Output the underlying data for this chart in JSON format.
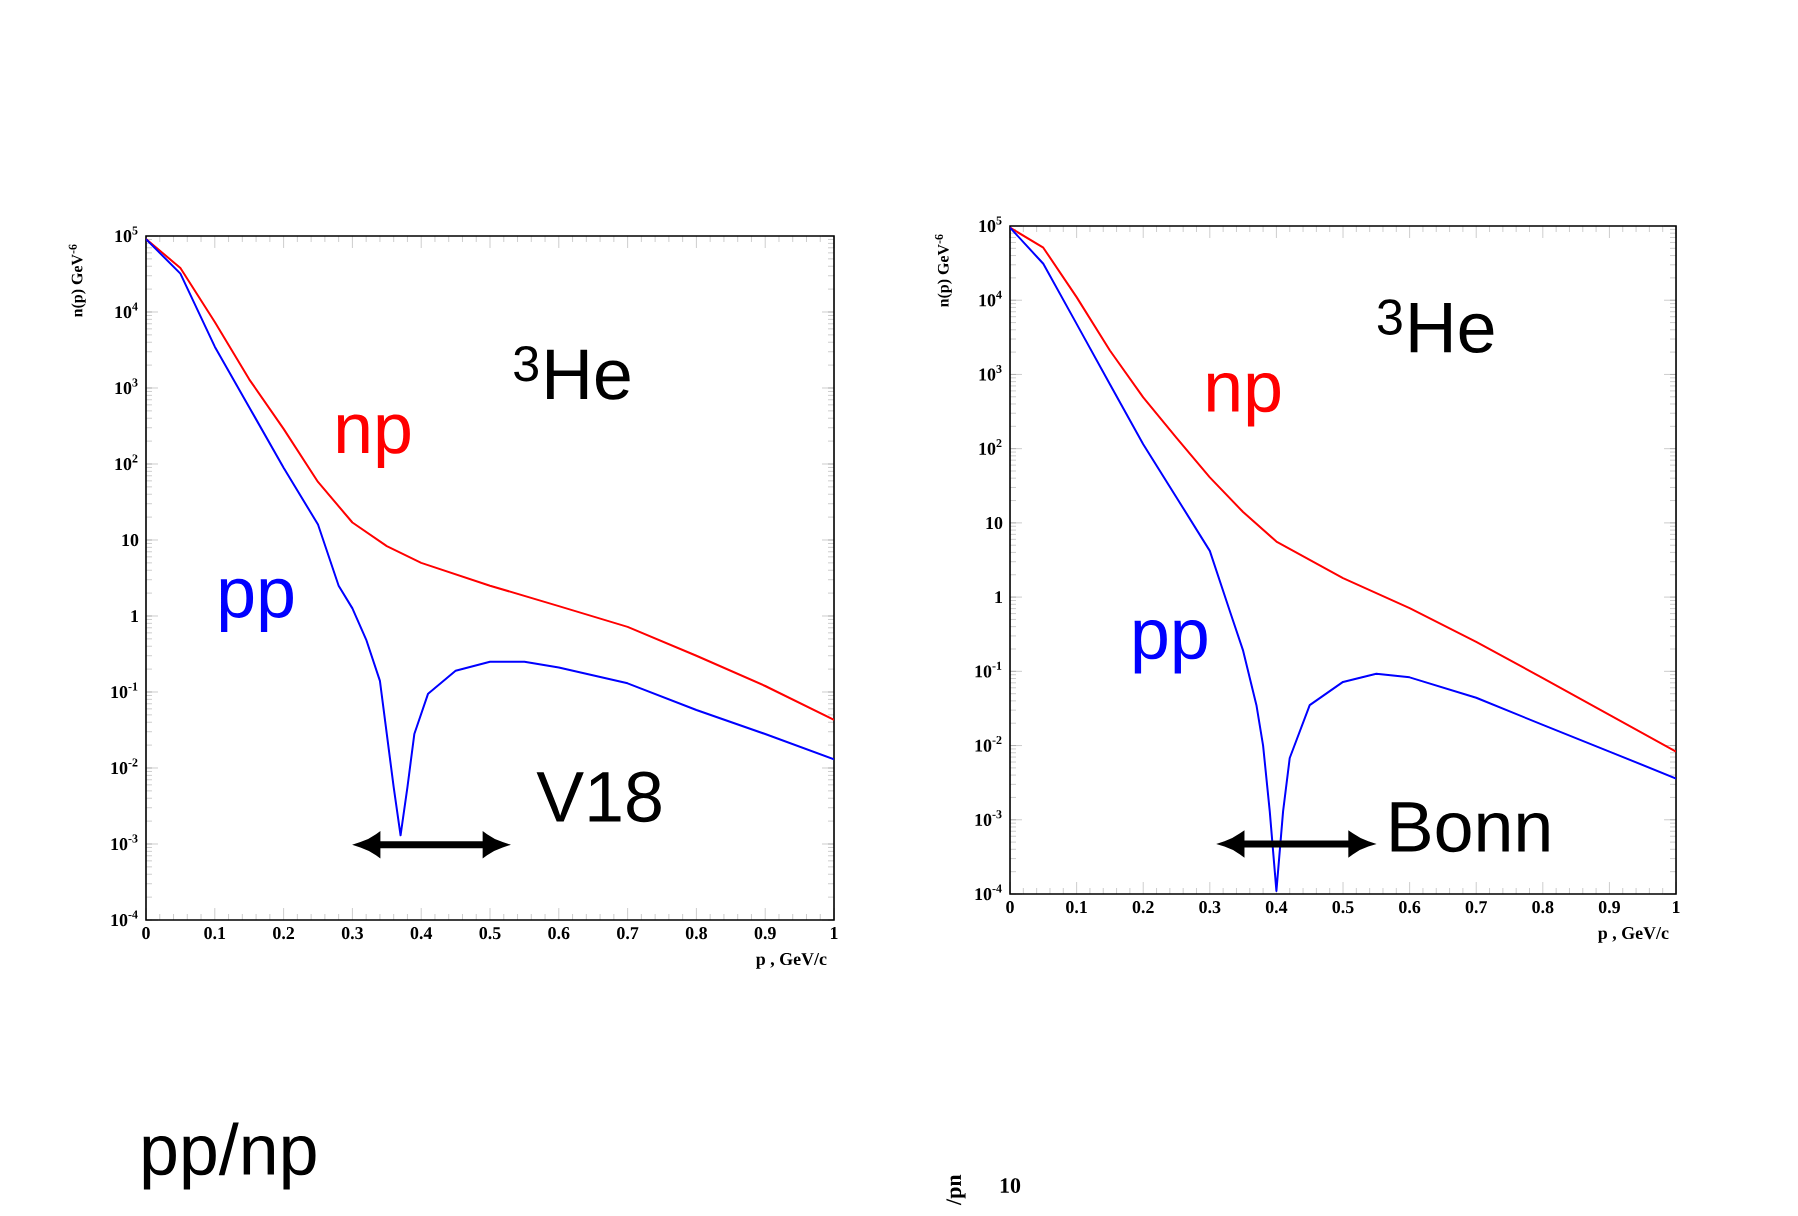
{
  "chart_data": [
    {
      "type": "line",
      "xlabel": "p , GeV/c",
      "ylabel": "n(p) GeV$^{-6}$",
      "log": "y",
      "xlim": [
        0,
        1
      ],
      "ylim": [
        0.0001,
        100000
      ],
      "xticks": [
        0,
        0.1,
        0.2,
        0.3,
        0.4,
        0.5,
        0.6,
        0.7,
        0.8,
        0.9,
        1
      ],
      "yticks": [
        {
          "value": 0.0001,
          "label": "10$^{-4}$"
        },
        {
          "value": 0.001,
          "label": "10$^{-3}$"
        },
        {
          "value": 0.01,
          "label": "10$^{-2}$"
        },
        {
          "value": 0.1,
          "label": "10$^{-1}$"
        },
        {
          "value": 1,
          "label": "1"
        },
        {
          "value": 10,
          "label": "10"
        },
        {
          "value": 100,
          "label": "10$^{2}$"
        },
        {
          "value": 1000,
          "label": "10$^{3}$"
        },
        {
          "value": 10000,
          "label": "10$^{4}$"
        },
        {
          "value": 100000,
          "label": "10$^{5}$"
        }
      ],
      "annotations": [
        "$^{3}$He",
        "V18"
      ],
      "series": [
        {
          "name": "np",
          "color": "#ff0000",
          "x": [
            0,
            0.05,
            0.1,
            0.15,
            0.2,
            0.25,
            0.3,
            0.35,
            0.4,
            0.5,
            0.6,
            0.7,
            0.8,
            0.9,
            1
          ],
          "values": [
            91000,
            38000,
            7400,
            1300,
            290,
            58,
            17,
            8.3,
            5.0,
            2.5,
            1.35,
            0.72,
            0.3,
            0.12,
            0.043
          ]
        },
        {
          "name": "pp",
          "color": "#0000ff",
          "x": [
            0,
            0.05,
            0.1,
            0.15,
            0.2,
            0.25,
            0.28,
            0.3,
            0.32,
            0.34,
            0.36,
            0.37,
            0.38,
            0.39,
            0.41,
            0.45,
            0.5,
            0.55,
            0.6,
            0.7,
            0.8,
            0.9,
            1
          ],
          "values": [
            91000,
            32000,
            3500,
            560,
            89,
            16,
            2.5,
            1.26,
            0.49,
            0.14,
            0.0056,
            0.0013,
            0.0056,
            0.028,
            0.095,
            0.19,
            0.25,
            0.25,
            0.21,
            0.13,
            0.058,
            0.028,
            0.013
          ]
        }
      ]
    },
    {
      "type": "line",
      "xlabel": "p , GeV/c",
      "ylabel": "n(p) GeV$^{-6}$",
      "log": "y",
      "xlim": [
        0,
        1
      ],
      "ylim": [
        0.0001,
        100000
      ],
      "xticks": [
        0,
        0.1,
        0.2,
        0.3,
        0.4,
        0.5,
        0.6,
        0.7,
        0.8,
        0.9,
        1
      ],
      "yticks": [
        {
          "value": 0.0001,
          "label": "10$^{-4}$"
        },
        {
          "value": 0.001,
          "label": "10$^{-3}$"
        },
        {
          "value": 0.01,
          "label": "10$^{-2}$"
        },
        {
          "value": 0.1,
          "label": "10$^{-1}$"
        },
        {
          "value": 1,
          "label": "1"
        },
        {
          "value": 10,
          "label": "10"
        },
        {
          "value": 100,
          "label": "10$^{2}$"
        },
        {
          "value": 1000,
          "label": "10$^{3}$"
        },
        {
          "value": 10000,
          "label": "10$^{4}$"
        },
        {
          "value": 100000,
          "label": "10$^{5}$"
        }
      ],
      "annotations": [
        "$^{3}$He",
        "Bonn"
      ],
      "series": [
        {
          "name": "np",
          "color": "#ff0000",
          "x": [
            0,
            0.05,
            0.1,
            0.15,
            0.2,
            0.25,
            0.3,
            0.35,
            0.4,
            0.5,
            0.6,
            0.7,
            0.8,
            0.9,
            1
          ],
          "values": [
            95000,
            51000,
            11000,
            2100,
            490,
            140,
            41,
            14,
            5.6,
            1.8,
            0.71,
            0.25,
            0.081,
            0.026,
            0.0083
          ]
        },
        {
          "name": "pp",
          "color": "#0000ff",
          "x": [
            0,
            0.05,
            0.1,
            0.15,
            0.2,
            0.25,
            0.3,
            0.33,
            0.35,
            0.37,
            0.38,
            0.39,
            0.4,
            0.41,
            0.42,
            0.45,
            0.5,
            0.55,
            0.6,
            0.7,
            0.8,
            0.9,
            1
          ],
          "values": [
            95000,
            31000,
            4800,
            740,
            115,
            22,
            4.2,
            0.65,
            0.19,
            0.035,
            0.01,
            0.0013,
            0.00011,
            0.0013,
            0.0068,
            0.035,
            0.072,
            0.093,
            0.083,
            0.044,
            0.019,
            0.0083,
            0.0036
          ]
        }
      ]
    },
    {
      "type": "other",
      "title": "pp/np",
      "annotations": [
        "10",
        "/pn"
      ]
    }
  ]
}
